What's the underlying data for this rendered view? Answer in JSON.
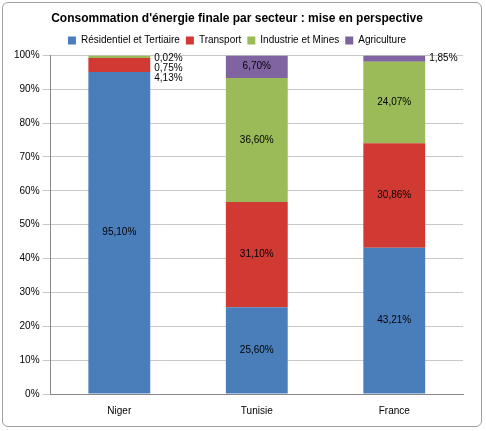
{
  "chart_data": {
    "type": "bar",
    "title": "Consommation d'énergie finale par secteur : mise en perspective",
    "categories": [
      "Niger",
      "Tunisie",
      "France"
    ],
    "stacked": true,
    "data_labels": true,
    "legend": "top",
    "grid": true,
    "ylim": [
      0,
      100
    ],
    "yticks": [
      {
        "value": 0,
        "label": "0%"
      },
      {
        "value": 10,
        "label": "10%"
      },
      {
        "value": 20,
        "label": "20%"
      },
      {
        "value": 30,
        "label": "30%"
      },
      {
        "value": 40,
        "label": "40%"
      },
      {
        "value": 50,
        "label": "50%"
      },
      {
        "value": 60,
        "label": "60%"
      },
      {
        "value": 70,
        "label": "70%"
      },
      {
        "value": 80,
        "label": "80%"
      },
      {
        "value": 90,
        "label": "90%"
      },
      {
        "value": 100,
        "label": "100%"
      }
    ],
    "series": [
      {
        "name": "Résidentiel et Tertiaire",
        "color": "#4a7ebb",
        "values": [
          95.1,
          25.6,
          43.21
        ],
        "value_labels": [
          "95,10%",
          "25,60%",
          "43,21%"
        ]
      },
      {
        "name": "Transport",
        "color": "#d03a32",
        "values": [
          4.13,
          31.1,
          30.86
        ],
        "value_labels": [
          "4,13%",
          "31,10%",
          "30,86%"
        ]
      },
      {
        "name": "Industrie et Mines",
        "color": "#9bbb59",
        "values": [
          0.75,
          36.6,
          24.07
        ],
        "value_labels": [
          "0,75%",
          "36,60%",
          "24,07%"
        ]
      },
      {
        "name": "Agriculture",
        "color": "#8064a2",
        "values": [
          0.02,
          6.7,
          1.85
        ],
        "value_labels": [
          "0,02%",
          "6,70%",
          "1,85%"
        ]
      }
    ]
  }
}
